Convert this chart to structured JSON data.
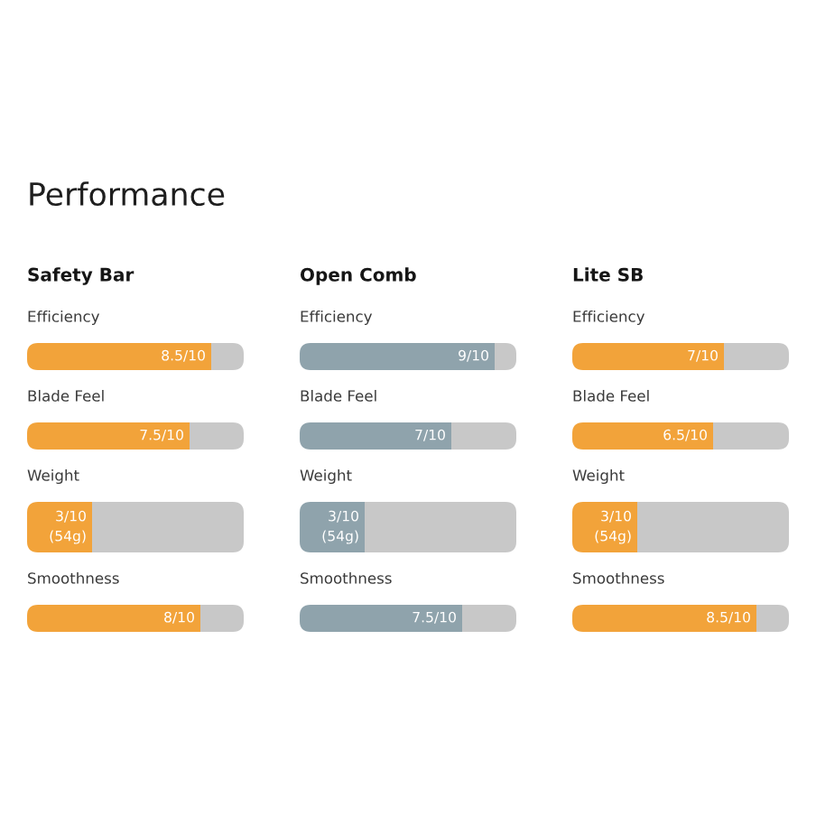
{
  "chart_data": [
    {
      "type": "bar",
      "orientation": "horizontal",
      "stacked": true,
      "title": "Safety Bar",
      "annotations": [
        "Performance"
      ],
      "categories": [
        "Efficiency",
        "Blade Feel",
        "Weight",
        "Smoothness"
      ],
      "xlim": [
        0,
        1
      ],
      "tick_labels": "y",
      "series": [
        {
          "color": "#f2a33a",
          "values": [
            0.85,
            0.75,
            0.3,
            0.8
          ],
          "value_labels": [
            "8.5/10",
            "7.5/10",
            "3/10\n(54g)",
            "8/10"
          ]
        },
        {
          "color": "#c8c8c8",
          "values": [
            0.15,
            0.25,
            0.7,
            0.2
          ]
        }
      ]
    },
    {
      "type": "bar",
      "orientation": "horizontal",
      "stacked": true,
      "title": "Open Comb",
      "categories": [
        "Efficiency",
        "Blade Feel",
        "Weight",
        "Smoothness"
      ],
      "xlim": [
        0,
        1
      ],
      "tick_labels": "y",
      "series": [
        {
          "color": "#8fa3ac",
          "values": [
            0.9,
            0.7,
            0.3,
            0.75
          ],
          "value_labels": [
            "9/10",
            "7/10",
            "3/10\n(54g)",
            "7.5/10"
          ]
        },
        {
          "color": "#c8c8c8",
          "values": [
            0.1,
            0.3,
            0.7,
            0.25
          ]
        }
      ]
    },
    {
      "type": "bar",
      "orientation": "horizontal",
      "stacked": true,
      "title": "Lite SB",
      "categories": [
        "Efficiency",
        "Blade Feel",
        "Weight",
        "Smoothness"
      ],
      "xlim": [
        0,
        1
      ],
      "tick_labels": "y",
      "series": [
        {
          "color": "#f2a33a",
          "values": [
            0.7,
            0.65,
            0.3,
            0.85
          ],
          "value_labels": [
            "7/10",
            "6.5/10",
            "3/10\n(54g)",
            "8.5/10"
          ]
        },
        {
          "color": "#c8c8c8",
          "values": [
            0.3,
            0.35,
            0.7,
            0.15
          ]
        }
      ]
    }
  ]
}
